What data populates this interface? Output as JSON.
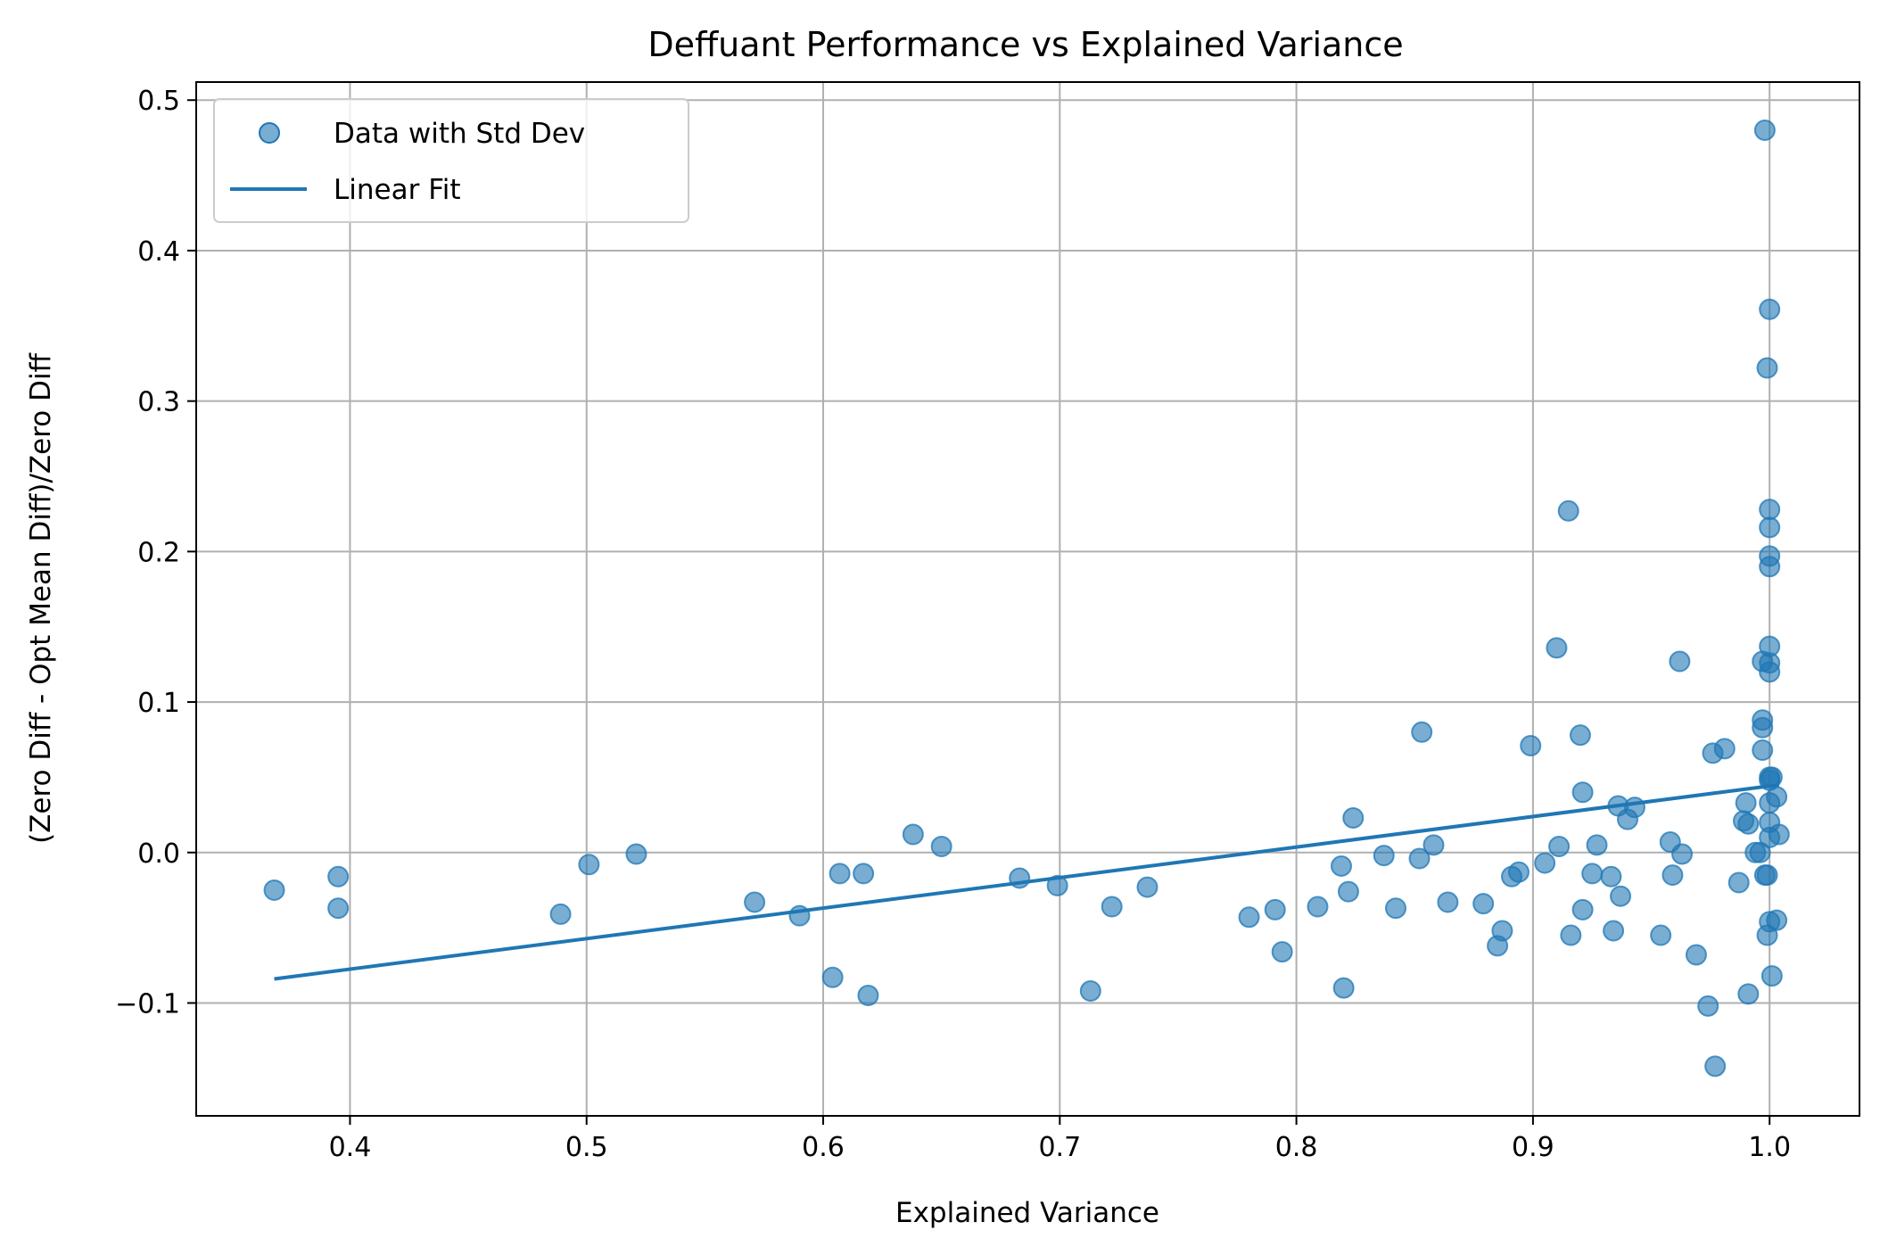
{
  "chart_data": {
    "type": "scatter",
    "title": "Deffuant Performance vs Explained Variance",
    "xlabel": "Explained Variance",
    "ylabel": "(Zero Diff - Opt Mean Diff)/Zero Diff",
    "xlim": [
      0.335,
      1.038
    ],
    "ylim": [
      -0.175,
      0.512
    ],
    "xticks": [
      0.4,
      0.5,
      0.6,
      0.7,
      0.8,
      0.9,
      1.0
    ],
    "xtick_labels": [
      "0.4",
      "0.5",
      "0.6",
      "0.7",
      "0.8",
      "0.9",
      "1.0"
    ],
    "yticks": [
      -0.1,
      0.0,
      0.1,
      0.2,
      0.3,
      0.4,
      0.5
    ],
    "ytick_labels": [
      "−0.1",
      "0.0",
      "0.1",
      "0.2",
      "0.3",
      "0.4",
      "0.5"
    ],
    "grid": true,
    "legend_position": "top-left",
    "series": [
      {
        "name": "Data with Std Dev",
        "kind": "scatter",
        "color": "#1f77b4",
        "points": [
          [
            0.368,
            -0.025
          ],
          [
            0.395,
            -0.016
          ],
          [
            0.395,
            -0.037
          ],
          [
            0.489,
            -0.041
          ],
          [
            0.501,
            -0.008
          ],
          [
            0.521,
            -0.001
          ],
          [
            0.571,
            -0.033
          ],
          [
            0.59,
            -0.042
          ],
          [
            0.604,
            -0.083
          ],
          [
            0.607,
            -0.014
          ],
          [
            0.617,
            -0.014
          ],
          [
            0.619,
            -0.095
          ],
          [
            0.638,
            0.012
          ],
          [
            0.65,
            0.004
          ],
          [
            0.683,
            -0.017
          ],
          [
            0.699,
            -0.022
          ],
          [
            0.713,
            -0.092
          ],
          [
            0.722,
            -0.036
          ],
          [
            0.737,
            -0.023
          ],
          [
            0.78,
            -0.043
          ],
          [
            0.791,
            -0.038
          ],
          [
            0.794,
            -0.066
          ],
          [
            0.809,
            -0.036
          ],
          [
            0.819,
            -0.009
          ],
          [
            0.82,
            -0.09
          ],
          [
            0.822,
            -0.026
          ],
          [
            0.824,
            0.023
          ],
          [
            0.837,
            -0.002
          ],
          [
            0.842,
            -0.037
          ],
          [
            0.852,
            -0.004
          ],
          [
            0.853,
            0.08
          ],
          [
            0.858,
            0.005
          ],
          [
            0.864,
            -0.033
          ],
          [
            0.879,
            -0.034
          ],
          [
            0.885,
            -0.062
          ],
          [
            0.887,
            -0.052
          ],
          [
            0.891,
            -0.016
          ],
          [
            0.894,
            -0.013
          ],
          [
            0.899,
            0.071
          ],
          [
            0.905,
            -0.007
          ],
          [
            0.91,
            0.136
          ],
          [
            0.911,
            0.004
          ],
          [
            0.915,
            0.227
          ],
          [
            0.916,
            -0.055
          ],
          [
            0.92,
            0.078
          ],
          [
            0.921,
            0.04
          ],
          [
            0.921,
            -0.038
          ],
          [
            0.925,
            -0.014
          ],
          [
            0.927,
            0.005
          ],
          [
            0.933,
            -0.016
          ],
          [
            0.934,
            -0.052
          ],
          [
            0.936,
            0.031
          ],
          [
            0.937,
            -0.029
          ],
          [
            0.94,
            0.022
          ],
          [
            0.943,
            0.03
          ],
          [
            0.954,
            -0.055
          ],
          [
            0.958,
            0.007
          ],
          [
            0.959,
            -0.015
          ],
          [
            0.962,
            0.127
          ],
          [
            0.963,
            -0.001
          ],
          [
            0.969,
            -0.068
          ],
          [
            0.974,
            -0.102
          ],
          [
            0.976,
            0.066
          ],
          [
            0.977,
            -0.142
          ],
          [
            0.981,
            0.069
          ],
          [
            0.987,
            -0.02
          ],
          [
            0.989,
            0.021
          ],
          [
            0.99,
            0.033
          ],
          [
            0.991,
            0.019
          ],
          [
            0.991,
            -0.094
          ],
          [
            0.994,
            0.0
          ],
          [
            0.996,
            0.0
          ],
          [
            0.997,
            0.088
          ],
          [
            0.997,
            0.083
          ],
          [
            0.997,
            0.068
          ],
          [
            0.997,
            0.127
          ],
          [
            0.998,
            0.48
          ],
          [
            0.998,
            -0.015
          ],
          [
            0.999,
            0.322
          ],
          [
            0.999,
            -0.015
          ],
          [
            0.999,
            -0.055
          ],
          [
            1.0,
            0.361
          ],
          [
            1.0,
            0.228
          ],
          [
            1.0,
            0.216
          ],
          [
            1.0,
            0.197
          ],
          [
            1.0,
            0.19
          ],
          [
            1.0,
            0.137
          ],
          [
            1.0,
            0.126
          ],
          [
            1.0,
            0.12
          ],
          [
            1.0,
            0.05
          ],
          [
            1.0,
            0.048
          ],
          [
            1.0,
            0.033
          ],
          [
            1.0,
            0.02
          ],
          [
            1.0,
            0.01
          ],
          [
            1.0,
            -0.046
          ],
          [
            1.001,
            0.05
          ],
          [
            1.001,
            -0.082
          ],
          [
            1.003,
            -0.045
          ],
          [
            1.003,
            0.037
          ],
          [
            1.004,
            0.012
          ]
        ]
      },
      {
        "name": "Linear Fit",
        "kind": "line",
        "color": "#1f77b4",
        "x": [
          0.368,
          1.004
        ],
        "y": [
          -0.084,
          0.045
        ]
      }
    ]
  }
}
